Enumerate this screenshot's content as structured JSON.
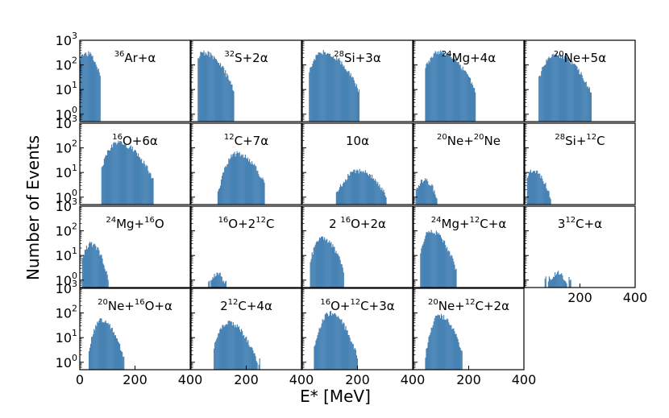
{
  "figure": {
    "ylabel": "Number of Events",
    "xlabel": "E* [MeV]"
  },
  "chart_data": {
    "type": "histogram-grid",
    "bar_color": "#4682b4",
    "y_scale": "log",
    "ylim": [
      0.5,
      1000
    ],
    "xlim": [
      0,
      400
    ],
    "y_tick_labels": [
      "10",
      "10",
      "10",
      "10"
    ],
    "y_tick_exponents": [
      "0",
      "1",
      "2",
      "3"
    ],
    "x_tick_labels": [
      "0",
      "200",
      "400"
    ],
    "x_tick_values": [
      0,
      200,
      400
    ],
    "panels": [
      {
        "id": "ar36-alpha",
        "title": [
          "",
          "36",
          "Ar+α"
        ],
        "lo": 0,
        "hi": 74,
        "peak_x": 25,
        "peak": 300,
        "w_left": 40,
        "w_right": 35
      },
      {
        "id": "s32-2alpha",
        "title": [
          "",
          "32",
          "S+2α"
        ],
        "lo": 24,
        "hi": 154,
        "peak_x": 42,
        "peak": 330,
        "w_left": 20,
        "w_right": 60
      },
      {
        "id": "si28-3alpha",
        "title": [
          "",
          "28",
          "Si+3α"
        ],
        "lo": 24,
        "hi": 205,
        "peak_x": 72,
        "peak": 330,
        "w_left": 35,
        "w_right": 70
      },
      {
        "id": "mg24-4alpha",
        "title": [
          "",
          "24",
          "Mg+4α"
        ],
        "lo": 42,
        "hi": 225,
        "peak_x": 92,
        "peak": 330,
        "w_left": 40,
        "w_right": 70
      },
      {
        "id": "ne20-5alpha",
        "title": [
          "",
          "20",
          "Ne+5α"
        ],
        "lo": 50,
        "hi": 240,
        "peak_x": 110,
        "peak": 260,
        "w_left": 40,
        "w_right": 70
      },
      {
        "id": "o16-6alpha",
        "title": [
          "",
          "16",
          "O+6α"
        ],
        "lo": 78,
        "hi": 265,
        "peak_x": 135,
        "peak": 170,
        "w_left": 35,
        "w_right": 70
      },
      {
        "id": "c12-7alpha",
        "title": [
          "",
          "12",
          "C+7α"
        ],
        "lo": 96,
        "hi": 265,
        "peak_x": 165,
        "peak": 60,
        "w_left": 35,
        "w_right": 60
      },
      {
        "id": "ten-alpha",
        "title": [
          "10α"
        ],
        "lo": 122,
        "hi": 305,
        "peak_x": 205,
        "peak": 12,
        "w_left": 55,
        "w_right": 65
      },
      {
        "id": "ne20-ne20",
        "title": [
          "",
          "20",
          "Ne+",
          "20",
          "Ne"
        ],
        "lo": 8,
        "hi": 95,
        "peak_x": 40,
        "peak": 5,
        "w_left": 30,
        "w_right": 35
      },
      {
        "id": "si28-c12",
        "title": [
          "",
          "28",
          "Si+",
          "12",
          "C"
        ],
        "lo": 8,
        "hi": 98,
        "peak_x": 30,
        "peak": 12,
        "w_left": 25,
        "w_right": 40
      },
      {
        "id": "mg24-o16",
        "title": [
          "",
          "24",
          "Mg+",
          "16",
          "O"
        ],
        "lo": 8,
        "hi": 102,
        "peak_x": 40,
        "peak": 30,
        "w_left": 25,
        "w_right": 35
      },
      {
        "id": "o16-2c12",
        "title": [
          "",
          "16",
          "O+2",
          "12",
          "C"
        ],
        "lo": 62,
        "hi": 128,
        "peak_x": 95,
        "peak": 2,
        "w_left": 25,
        "w_right": 25
      },
      {
        "id": "2o16-2alpha",
        "title": [
          "2 ",
          "16",
          "O+2α"
        ],
        "lo": 28,
        "hi": 150,
        "peak_x": 72,
        "peak": 50,
        "w_left": 30,
        "w_right": 45
      },
      {
        "id": "mg24-c12-alpha",
        "title": [
          "",
          "24",
          "Mg+",
          "12",
          "C+α"
        ],
        "lo": 24,
        "hi": 155,
        "peak_x": 60,
        "peak": 100,
        "w_left": 25,
        "w_right": 50
      },
      {
        "id": "3c12-alpha",
        "title": [
          "3",
          "12",
          "C+α"
        ],
        "lo": 72,
        "hi": 170,
        "peak_x": 120,
        "peak": 2,
        "w_left": 30,
        "w_right": 30
      },
      {
        "id": "ne20-o16-alpha",
        "title": [
          "",
          "20",
          "Ne+",
          "16",
          "O+α"
        ],
        "lo": 32,
        "hi": 160,
        "peak_x": 75,
        "peak": 50,
        "w_left": 25,
        "w_right": 45
      },
      {
        "id": "2c12-4alpha",
        "title": [
          "2",
          "12",
          "C+4α"
        ],
        "lo": 82,
        "hi": 250,
        "peak_x": 135,
        "peak": 40,
        "w_left": 35,
        "w_right": 55
      },
      {
        "id": "o16-c12-3alpha",
        "title": [
          "",
          "16",
          "O+",
          "12",
          "C+3α"
        ],
        "lo": 42,
        "hi": 200,
        "peak_x": 98,
        "peak": 100,
        "w_left": 30,
        "w_right": 50
      },
      {
        "id": "ne20-c12-2alpha",
        "title": [
          "",
          "20",
          "Ne+",
          "12",
          "C+2α"
        ],
        "lo": 42,
        "hi": 175,
        "peak_x": 92,
        "peak": 80,
        "w_left": 25,
        "w_right": 45
      }
    ]
  }
}
